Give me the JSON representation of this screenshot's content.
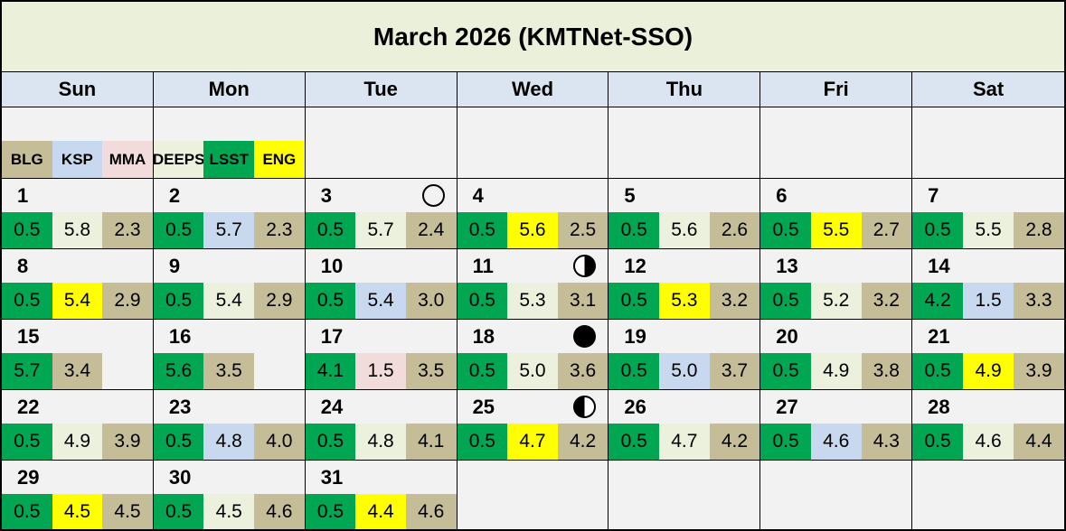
{
  "title": "March 2026 (KMTNet-SSO)",
  "weekdays": [
    "Sun",
    "Mon",
    "Tue",
    "Wed",
    "Thu",
    "Fri",
    "Sat"
  ],
  "legend": [
    {
      "label": "BLG",
      "key": "blg"
    },
    {
      "label": "KSP",
      "key": "ksp"
    },
    {
      "label": "MMA",
      "key": "mma"
    },
    {
      "label": "DEEPS",
      "key": "deeps"
    },
    {
      "label": "LSST",
      "key": "lsst"
    },
    {
      "label": "ENG",
      "key": "eng"
    }
  ],
  "colors": {
    "blg": "#c4bd97",
    "ksp": "#c8d8ee",
    "mma": "#f2dcdb",
    "deeps": "#ebf1dd",
    "lsst": "#00a651",
    "eng": "#ffff00",
    "title_bg": "#ebf0da",
    "weekday_bg": "#dbe5f1",
    "grid_bg": "#f2f2f2"
  },
  "moons": {
    "3": "open",
    "11": "right",
    "18": "new",
    "25": "left"
  },
  "weeks": [
    {
      "days": [
        {
          "day": "1",
          "moon": null,
          "values": [
            [
              "0.5",
              "lsst"
            ],
            [
              "5.8",
              "deeps"
            ],
            [
              "2.3",
              "blg"
            ]
          ]
        },
        {
          "day": "2",
          "moon": null,
          "values": [
            [
              "0.5",
              "lsst"
            ],
            [
              "5.7",
              "ksp"
            ],
            [
              "2.3",
              "blg"
            ]
          ]
        },
        {
          "day": "3",
          "moon": "open",
          "values": [
            [
              "0.5",
              "lsst"
            ],
            [
              "5.7",
              "deeps"
            ],
            [
              "2.4",
              "blg"
            ]
          ]
        },
        {
          "day": "4",
          "moon": null,
          "values": [
            [
              "0.5",
              "lsst"
            ],
            [
              "5.6",
              "eng"
            ],
            [
              "2.5",
              "blg"
            ]
          ]
        },
        {
          "day": "5",
          "moon": null,
          "values": [
            [
              "0.5",
              "lsst"
            ],
            [
              "5.6",
              "deeps"
            ],
            [
              "2.6",
              "blg"
            ]
          ]
        },
        {
          "day": "6",
          "moon": null,
          "values": [
            [
              "0.5",
              "lsst"
            ],
            [
              "5.5",
              "eng"
            ],
            [
              "2.7",
              "blg"
            ]
          ]
        },
        {
          "day": "7",
          "moon": null,
          "values": [
            [
              "0.5",
              "lsst"
            ],
            [
              "5.5",
              "deeps"
            ],
            [
              "2.8",
              "blg"
            ]
          ]
        }
      ]
    },
    {
      "days": [
        {
          "day": "8",
          "moon": null,
          "values": [
            [
              "0.5",
              "lsst"
            ],
            [
              "5.4",
              "eng"
            ],
            [
              "2.9",
              "blg"
            ]
          ]
        },
        {
          "day": "9",
          "moon": null,
          "values": [
            [
              "0.5",
              "lsst"
            ],
            [
              "5.4",
              "deeps"
            ],
            [
              "2.9",
              "blg"
            ]
          ]
        },
        {
          "day": "10",
          "moon": null,
          "values": [
            [
              "0.5",
              "lsst"
            ],
            [
              "5.4",
              "ksp"
            ],
            [
              "3.0",
              "blg"
            ]
          ]
        },
        {
          "day": "11",
          "moon": "right",
          "values": [
            [
              "0.5",
              "lsst"
            ],
            [
              "5.3",
              "deeps"
            ],
            [
              "3.1",
              "blg"
            ]
          ]
        },
        {
          "day": "12",
          "moon": null,
          "values": [
            [
              "0.5",
              "lsst"
            ],
            [
              "5.3",
              "eng"
            ],
            [
              "3.2",
              "blg"
            ]
          ]
        },
        {
          "day": "13",
          "moon": null,
          "values": [
            [
              "0.5",
              "lsst"
            ],
            [
              "5.2",
              "deeps"
            ],
            [
              "3.2",
              "blg"
            ]
          ]
        },
        {
          "day": "14",
          "moon": null,
          "values": [
            [
              "4.2",
              "lsst"
            ],
            [
              "1.5",
              "ksp"
            ],
            [
              "3.3",
              "blg"
            ]
          ]
        }
      ]
    },
    {
      "days": [
        {
          "day": "15",
          "moon": null,
          "values": [
            [
              "5.7",
              "lsst"
            ],
            [
              "3.4",
              "blg"
            ],
            [
              "",
              null
            ]
          ]
        },
        {
          "day": "16",
          "moon": null,
          "values": [
            [
              "5.6",
              "lsst"
            ],
            [
              "3.5",
              "blg"
            ],
            [
              "",
              null
            ]
          ]
        },
        {
          "day": "17",
          "moon": null,
          "values": [
            [
              "4.1",
              "lsst"
            ],
            [
              "1.5",
              "mma"
            ],
            [
              "3.5",
              "blg"
            ]
          ]
        },
        {
          "day": "18",
          "moon": "new",
          "values": [
            [
              "0.5",
              "lsst"
            ],
            [
              "5.0",
              "deeps"
            ],
            [
              "3.6",
              "blg"
            ]
          ]
        },
        {
          "day": "19",
          "moon": null,
          "values": [
            [
              "0.5",
              "lsst"
            ],
            [
              "5.0",
              "ksp"
            ],
            [
              "3.7",
              "blg"
            ]
          ]
        },
        {
          "day": "20",
          "moon": null,
          "values": [
            [
              "0.5",
              "lsst"
            ],
            [
              "4.9",
              "deeps"
            ],
            [
              "3.8",
              "blg"
            ]
          ]
        },
        {
          "day": "21",
          "moon": null,
          "values": [
            [
              "0.5",
              "lsst"
            ],
            [
              "4.9",
              "eng"
            ],
            [
              "3.9",
              "blg"
            ]
          ]
        }
      ]
    },
    {
      "days": [
        {
          "day": "22",
          "moon": null,
          "values": [
            [
              "0.5",
              "lsst"
            ],
            [
              "4.9",
              "deeps"
            ],
            [
              "3.9",
              "blg"
            ]
          ]
        },
        {
          "day": "23",
          "moon": null,
          "values": [
            [
              "0.5",
              "lsst"
            ],
            [
              "4.8",
              "ksp"
            ],
            [
              "4.0",
              "blg"
            ]
          ]
        },
        {
          "day": "24",
          "moon": null,
          "values": [
            [
              "0.5",
              "lsst"
            ],
            [
              "4.8",
              "deeps"
            ],
            [
              "4.1",
              "blg"
            ]
          ]
        },
        {
          "day": "25",
          "moon": "left",
          "values": [
            [
              "0.5",
              "lsst"
            ],
            [
              "4.7",
              "eng"
            ],
            [
              "4.2",
              "blg"
            ]
          ]
        },
        {
          "day": "26",
          "moon": null,
          "values": [
            [
              "0.5",
              "lsst"
            ],
            [
              "4.7",
              "deeps"
            ],
            [
              "4.2",
              "blg"
            ]
          ]
        },
        {
          "day": "27",
          "moon": null,
          "values": [
            [
              "0.5",
              "lsst"
            ],
            [
              "4.6",
              "ksp"
            ],
            [
              "4.3",
              "blg"
            ]
          ]
        },
        {
          "day": "28",
          "moon": null,
          "values": [
            [
              "0.5",
              "lsst"
            ],
            [
              "4.6",
              "deeps"
            ],
            [
              "4.4",
              "blg"
            ]
          ]
        }
      ]
    },
    {
      "days": [
        {
          "day": "29",
          "moon": null,
          "values": [
            [
              "0.5",
              "lsst"
            ],
            [
              "4.5",
              "eng"
            ],
            [
              "4.5",
              "blg"
            ]
          ]
        },
        {
          "day": "30",
          "moon": null,
          "values": [
            [
              "0.5",
              "lsst"
            ],
            [
              "4.5",
              "deeps"
            ],
            [
              "4.6",
              "blg"
            ]
          ]
        },
        {
          "day": "31",
          "moon": null,
          "values": [
            [
              "0.5",
              "lsst"
            ],
            [
              "4.4",
              "eng"
            ],
            [
              "4.6",
              "blg"
            ]
          ]
        },
        {
          "day": "",
          "moon": null,
          "values": []
        },
        {
          "day": "",
          "moon": null,
          "values": []
        },
        {
          "day": "",
          "moon": null,
          "values": []
        },
        {
          "day": "",
          "moon": null,
          "values": []
        }
      ]
    }
  ]
}
